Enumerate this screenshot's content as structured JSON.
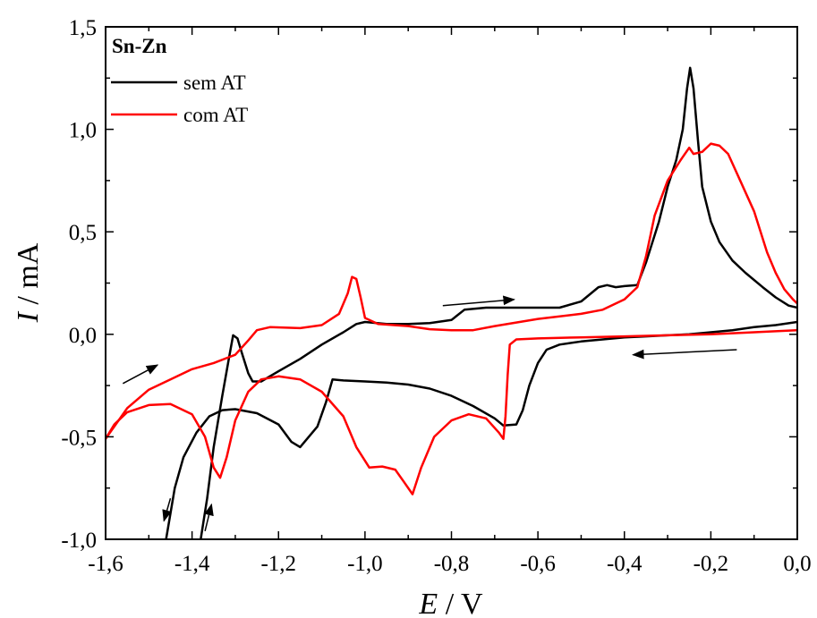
{
  "chart_data": {
    "type": "line",
    "xlim": [
      -1.6,
      0.0
    ],
    "ylim": [
      -1.0,
      1.5
    ],
    "x_ticks": [
      "-1,6",
      "-1,4",
      "-1,2",
      "-1,0",
      "-0,8",
      "-0,6",
      "-0,4",
      "-0,2",
      "0,0"
    ],
    "y_ticks": [
      "-1,0",
      "-0,5",
      "0,0",
      "0,5",
      "1,0",
      "1,5"
    ],
    "x_tick_values": [
      -1.6,
      -1.4,
      -1.2,
      -1.0,
      -0.8,
      -0.6,
      -0.4,
      -0.2,
      0.0
    ],
    "y_tick_values": [
      -1.0,
      -0.5,
      0.0,
      0.5,
      1.0,
      1.5
    ],
    "xlabel": {
      "symbol": "E",
      "unit": " / V"
    },
    "ylabel": {
      "symbol": "I",
      "unit": " / mA"
    },
    "grid": false,
    "legend": {
      "title": "Sn-Zn",
      "position": "top-left"
    },
    "series": [
      {
        "name": "sem AT",
        "color": "#000000",
        "points": [
          [
            0.0,
            0.06
          ],
          [
            -0.05,
            0.045
          ],
          [
            -0.1,
            0.035
          ],
          [
            -0.15,
            0.02
          ],
          [
            -0.2,
            0.01
          ],
          [
            -0.25,
            0.0
          ],
          [
            -0.3,
            -0.005
          ],
          [
            -0.35,
            -0.01
          ],
          [
            -0.4,
            -0.015
          ],
          [
            -0.45,
            -0.025
          ],
          [
            -0.5,
            -0.035
          ],
          [
            -0.55,
            -0.05
          ],
          [
            -0.58,
            -0.075
          ],
          [
            -0.6,
            -0.14
          ],
          [
            -0.62,
            -0.25
          ],
          [
            -0.635,
            -0.37
          ],
          [
            -0.65,
            -0.44
          ],
          [
            -0.68,
            -0.445
          ],
          [
            -0.7,
            -0.41
          ],
          [
            -0.75,
            -0.35
          ],
          [
            -0.8,
            -0.3
          ],
          [
            -0.85,
            -0.265
          ],
          [
            -0.9,
            -0.245
          ],
          [
            -0.95,
            -0.235
          ],
          [
            -1.0,
            -0.23
          ],
          [
            -1.05,
            -0.225
          ],
          [
            -1.075,
            -0.22
          ],
          [
            -1.09,
            -0.33
          ],
          [
            -1.11,
            -0.45
          ],
          [
            -1.15,
            -0.55
          ],
          [
            -1.17,
            -0.525
          ],
          [
            -1.2,
            -0.44
          ],
          [
            -1.25,
            -0.385
          ],
          [
            -1.3,
            -0.365
          ],
          [
            -1.33,
            -0.37
          ],
          [
            -1.36,
            -0.4
          ],
          [
            -1.39,
            -0.48
          ],
          [
            -1.42,
            -0.6
          ],
          [
            -1.44,
            -0.75
          ],
          [
            -1.46,
            -1.0
          ]
        ]
      },
      {
        "name": "sem AT",
        "color": "#000000",
        "points": [
          [
            -1.38,
            -1.0
          ],
          [
            -1.365,
            -0.8
          ],
          [
            -1.35,
            -0.55
          ],
          [
            -1.33,
            -0.3
          ],
          [
            -1.315,
            -0.12
          ],
          [
            -1.305,
            -0.005
          ],
          [
            -1.295,
            -0.02
          ],
          [
            -1.285,
            -0.09
          ],
          [
            -1.27,
            -0.19
          ],
          [
            -1.26,
            -0.23
          ],
          [
            -1.24,
            -0.23
          ],
          [
            -1.2,
            -0.18
          ],
          [
            -1.15,
            -0.12
          ],
          [
            -1.1,
            -0.05
          ],
          [
            -1.05,
            0.01
          ],
          [
            -1.02,
            0.05
          ],
          [
            -1.0,
            0.06
          ],
          [
            -0.95,
            0.05
          ],
          [
            -0.9,
            0.05
          ],
          [
            -0.85,
            0.055
          ],
          [
            -0.8,
            0.07
          ],
          [
            -0.77,
            0.12
          ],
          [
            -0.72,
            0.13
          ],
          [
            -0.65,
            0.13
          ],
          [
            -0.55,
            0.13
          ],
          [
            -0.5,
            0.16
          ],
          [
            -0.46,
            0.23
          ],
          [
            -0.44,
            0.24
          ],
          [
            -0.42,
            0.23
          ],
          [
            -0.4,
            0.235
          ],
          [
            -0.37,
            0.24
          ],
          [
            -0.35,
            0.35
          ],
          [
            -0.32,
            0.55
          ],
          [
            -0.3,
            0.72
          ],
          [
            -0.28,
            0.85
          ],
          [
            -0.265,
            1.0
          ],
          [
            -0.255,
            1.2
          ],
          [
            -0.248,
            1.3
          ],
          [
            -0.24,
            1.2
          ],
          [
            -0.23,
            0.95
          ],
          [
            -0.22,
            0.72
          ],
          [
            -0.2,
            0.55
          ],
          [
            -0.18,
            0.45
          ],
          [
            -0.15,
            0.36
          ],
          [
            -0.12,
            0.3
          ],
          [
            -0.08,
            0.23
          ],
          [
            -0.05,
            0.18
          ],
          [
            -0.02,
            0.14
          ],
          [
            0.0,
            0.13
          ]
        ]
      },
      {
        "name": "com AT",
        "color": "#ff0000",
        "points": [
          [
            0.0,
            0.02
          ],
          [
            -0.1,
            0.01
          ],
          [
            -0.2,
            0.0
          ],
          [
            -0.3,
            -0.005
          ],
          [
            -0.4,
            -0.01
          ],
          [
            -0.5,
            -0.015
          ],
          [
            -0.6,
            -0.02
          ],
          [
            -0.65,
            -0.025
          ],
          [
            -0.665,
            -0.05
          ],
          [
            -0.67,
            -0.2
          ],
          [
            -0.675,
            -0.4
          ],
          [
            -0.68,
            -0.51
          ],
          [
            -0.69,
            -0.48
          ],
          [
            -0.72,
            -0.41
          ],
          [
            -0.76,
            -0.39
          ],
          [
            -0.8,
            -0.42
          ],
          [
            -0.84,
            -0.5
          ],
          [
            -0.87,
            -0.65
          ],
          [
            -0.89,
            -0.78
          ],
          [
            -0.91,
            -0.72
          ],
          [
            -0.93,
            -0.66
          ],
          [
            -0.96,
            -0.645
          ],
          [
            -0.99,
            -0.65
          ],
          [
            -1.02,
            -0.55
          ],
          [
            -1.05,
            -0.4
          ],
          [
            -1.1,
            -0.28
          ],
          [
            -1.15,
            -0.22
          ],
          [
            -1.2,
            -0.205
          ],
          [
            -1.24,
            -0.22
          ],
          [
            -1.27,
            -0.28
          ],
          [
            -1.3,
            -0.42
          ],
          [
            -1.32,
            -0.6
          ],
          [
            -1.335,
            -0.7
          ],
          [
            -1.35,
            -0.65
          ],
          [
            -1.37,
            -0.5
          ],
          [
            -1.4,
            -0.39
          ],
          [
            -1.45,
            -0.34
          ],
          [
            -1.5,
            -0.345
          ],
          [
            -1.55,
            -0.38
          ],
          [
            -1.58,
            -0.44
          ],
          [
            -1.6,
            -0.51
          ]
        ]
      },
      {
        "name": "com AT",
        "color": "#ff0000",
        "points": [
          [
            -1.6,
            -0.51
          ],
          [
            -1.55,
            -0.36
          ],
          [
            -1.5,
            -0.27
          ],
          [
            -1.45,
            -0.22
          ],
          [
            -1.4,
            -0.17
          ],
          [
            -1.35,
            -0.14
          ],
          [
            -1.3,
            -0.1
          ],
          [
            -1.27,
            -0.03
          ],
          [
            -1.25,
            0.02
          ],
          [
            -1.22,
            0.035
          ],
          [
            -1.15,
            0.03
          ],
          [
            -1.1,
            0.045
          ],
          [
            -1.06,
            0.1
          ],
          [
            -1.04,
            0.2
          ],
          [
            -1.03,
            0.28
          ],
          [
            -1.02,
            0.27
          ],
          [
            -1.01,
            0.18
          ],
          [
            -1.0,
            0.08
          ],
          [
            -0.97,
            0.05
          ],
          [
            -0.9,
            0.04
          ],
          [
            -0.85,
            0.025
          ],
          [
            -0.8,
            0.02
          ],
          [
            -0.75,
            0.02
          ],
          [
            -0.7,
            0.04
          ],
          [
            -0.6,
            0.075
          ],
          [
            -0.5,
            0.1
          ],
          [
            -0.45,
            0.12
          ],
          [
            -0.4,
            0.17
          ],
          [
            -0.37,
            0.23
          ],
          [
            -0.35,
            0.38
          ],
          [
            -0.33,
            0.58
          ],
          [
            -0.3,
            0.75
          ],
          [
            -0.27,
            0.85
          ],
          [
            -0.25,
            0.91
          ],
          [
            -0.24,
            0.88
          ],
          [
            -0.22,
            0.89
          ],
          [
            -0.2,
            0.93
          ],
          [
            -0.18,
            0.92
          ],
          [
            -0.16,
            0.88
          ],
          [
            -0.13,
            0.74
          ],
          [
            -0.1,
            0.6
          ],
          [
            -0.07,
            0.4
          ],
          [
            -0.05,
            0.3
          ],
          [
            -0.03,
            0.22
          ],
          [
            -0.01,
            0.17
          ],
          [
            0.0,
            0.15
          ]
        ]
      }
    ],
    "arrows": [
      {
        "from": [
          -1.56,
          -0.24
        ],
        "to": [
          -1.48,
          -0.15
        ]
      },
      {
        "from": [
          -1.45,
          -0.8
        ],
        "to": [
          -1.465,
          -0.91
        ]
      },
      {
        "from": [
          -1.37,
          -0.96
        ],
        "to": [
          -1.355,
          -0.83
        ]
      },
      {
        "from": [
          -0.82,
          0.14
        ],
        "to": [
          -0.655,
          0.17
        ]
      },
      {
        "from": [
          -0.14,
          -0.075
        ],
        "to": [
          -0.38,
          -0.1
        ]
      }
    ]
  }
}
